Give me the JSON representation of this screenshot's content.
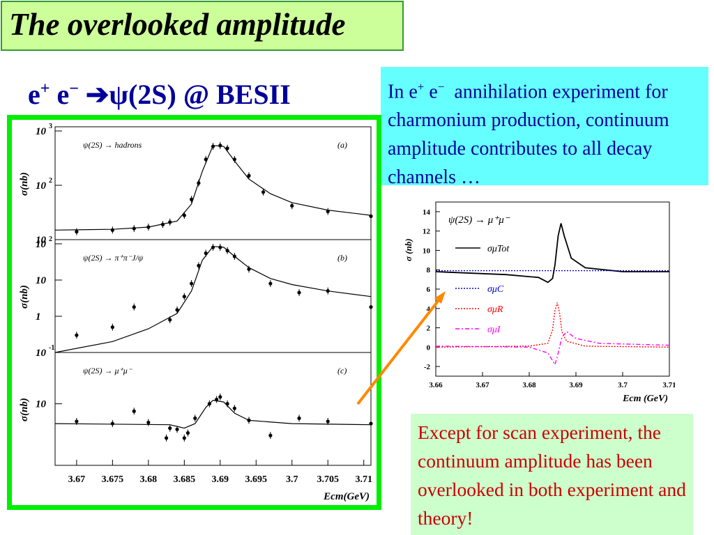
{
  "slide": {
    "title": "The overlooked amplitude",
    "subtitle": {
      "e1": "e",
      "e1_sup": "+",
      "e2": "e",
      "e2_sup": "−",
      "arrow": "➔",
      "rest": "ψ(2S) @ BESII"
    },
    "info_box": {
      "text_a": "In e",
      "sup_a": "+",
      "text_b": " e",
      "sup_b": "−",
      "text_c": "annihilation experiment for charmonium production, continuum amplitude contributes to all decay channels …"
    },
    "note_box": {
      "text": "Except for scan experiment, the continuum amplitude has been overlooked in both experiment and theory!"
    }
  },
  "chart_data": [
    {
      "type": "scatter",
      "panel": "(a)",
      "label": "ψ(2S) → hadrons",
      "ylabel": "σ(nb)",
      "yscale": "log",
      "ylim": [
        10,
        1000
      ],
      "yticks": [
        "10",
        "10²",
        "10³"
      ],
      "points": [
        [
          3.67,
          14
        ],
        [
          3.675,
          15
        ],
        [
          3.678,
          16
        ],
        [
          3.68,
          17
        ],
        [
          3.682,
          19
        ],
        [
          3.683,
          21
        ],
        [
          3.685,
          28
        ],
        [
          3.686,
          55
        ],
        [
          3.687,
          110
        ],
        [
          3.688,
          300
        ],
        [
          3.689,
          520
        ],
        [
          3.69,
          540
        ],
        [
          3.691,
          480
        ],
        [
          3.692,
          300
        ],
        [
          3.694,
          150
        ],
        [
          3.696,
          75
        ],
        [
          3.7,
          42
        ],
        [
          3.705,
          33
        ],
        [
          3.711,
          27
        ]
      ],
      "fit": [
        [
          3.667,
          15
        ],
        [
          3.675,
          15.5
        ],
        [
          3.68,
          17
        ],
        [
          3.684,
          22
        ],
        [
          3.686,
          45
        ],
        [
          3.6875,
          180
        ],
        [
          3.689,
          540
        ],
        [
          3.6905,
          520
        ],
        [
          3.692,
          280
        ],
        [
          3.694,
          130
        ],
        [
          3.697,
          70
        ],
        [
          3.7,
          48
        ],
        [
          3.705,
          35
        ],
        [
          3.711,
          28
        ]
      ]
    },
    {
      "type": "scatter",
      "panel": "(b)",
      "label": "ψ(2S) → π⁺π⁻J/ψ",
      "ylabel": "σ(nb)",
      "yscale": "log",
      "ylim": [
        0.1,
        100
      ],
      "yticks": [
        "10⁻¹",
        "1",
        "10",
        "10²"
      ],
      "points": [
        [
          3.67,
          0.3
        ],
        [
          3.675,
          0.5
        ],
        [
          3.678,
          1.8
        ],
        [
          3.683,
          0.8
        ],
        [
          3.684,
          1.5
        ],
        [
          3.685,
          3.5
        ],
        [
          3.686,
          8
        ],
        [
          3.687,
          25
        ],
        [
          3.688,
          55
        ],
        [
          3.689,
          80
        ],
        [
          3.69,
          80
        ],
        [
          3.691,
          65
        ],
        [
          3.692,
          45
        ],
        [
          3.694,
          20
        ],
        [
          3.697,
          8
        ],
        [
          3.701,
          4.5
        ],
        [
          3.705,
          5
        ],
        [
          3.711,
          1.8
        ]
      ],
      "fit": [
        [
          3.667,
          0.1
        ],
        [
          3.675,
          0.2
        ],
        [
          3.68,
          0.45
        ],
        [
          3.684,
          1.2
        ],
        [
          3.686,
          5
        ],
        [
          3.6875,
          35
        ],
        [
          3.689,
          85
        ],
        [
          3.6905,
          80
        ],
        [
          3.692,
          45
        ],
        [
          3.694,
          22
        ],
        [
          3.697,
          11
        ],
        [
          3.7,
          7.5
        ],
        [
          3.705,
          5
        ],
        [
          3.711,
          3.5
        ]
      ]
    },
    {
      "type": "scatter",
      "panel": "(c)",
      "label": "ψ(2S) → μ⁺μ⁻",
      "ylabel": "σ(nb)",
      "yscale": "log",
      "ylim": [
        5,
        17
      ],
      "yticks": [
        "10"
      ],
      "xlabel": "Ecm(GeV)",
      "xlim": [
        3.667,
        3.711
      ],
      "xticks": [
        "3.67",
        "3.675",
        "3.68",
        "3.685",
        "3.69",
        "3.695",
        "3.7",
        "3.705",
        "3.71"
      ],
      "points": [
        [
          3.67,
          8.2
        ],
        [
          3.675,
          8.0
        ],
        [
          3.678,
          9.2
        ],
        [
          3.68,
          8.1
        ],
        [
          3.6825,
          6.8
        ],
        [
          3.683,
          7.6
        ],
        [
          3.684,
          7.5
        ],
        [
          3.685,
          6.8
        ],
        [
          3.6855,
          7.2
        ],
        [
          3.6865,
          8.5
        ],
        [
          3.6885,
          10.0
        ],
        [
          3.6895,
          10.5
        ],
        [
          3.69,
          10.8
        ],
        [
          3.691,
          10.0
        ],
        [
          3.692,
          9.5
        ],
        [
          3.694,
          8.3
        ],
        [
          3.697,
          7.0
        ],
        [
          3.701,
          8.5
        ],
        [
          3.705,
          8.2
        ],
        [
          3.711,
          8.0
        ]
      ],
      "fit": [
        [
          3.667,
          8.0
        ],
        [
          3.683,
          7.9
        ],
        [
          3.685,
          7.6
        ],
        [
          3.6865,
          8.0
        ],
        [
          3.688,
          9.6
        ],
        [
          3.689,
          10.4
        ],
        [
          3.6905,
          10.2
        ],
        [
          3.692,
          9.0
        ],
        [
          3.694,
          8.3
        ],
        [
          3.7,
          8.0
        ],
        [
          3.711,
          7.9
        ]
      ]
    },
    {
      "type": "line",
      "label": "ψ(2S) → μ⁺μ⁻",
      "ylabel": "σ (nb)",
      "xlabel": "Ecm (GeV)",
      "xlim": [
        3.66,
        3.71
      ],
      "ylim": [
        -3,
        15
      ],
      "xticks": [
        "3.66",
        "3.67",
        "3.68",
        "3.69",
        "3.7",
        "3.71"
      ],
      "yticks": [
        "-2",
        "0",
        "2",
        "4",
        "6",
        "8",
        "10",
        "12",
        "14"
      ],
      "series": [
        {
          "name": "σμTot",
          "color": "#000000",
          "style": "solid",
          "values": [
            [
              3.66,
              7.8
            ],
            [
              3.675,
              7.5
            ],
            [
              3.682,
              7.2
            ],
            [
              3.684,
              6.7
            ],
            [
              3.685,
              7.1
            ],
            [
              3.6855,
              8.5
            ],
            [
              3.6862,
              11.5
            ],
            [
              3.6868,
              12.8
            ],
            [
              3.6875,
              11.5
            ],
            [
              3.689,
              9.2
            ],
            [
              3.692,
              8.2
            ],
            [
              3.7,
              7.8
            ],
            [
              3.71,
              7.8
            ]
          ]
        },
        {
          "name": "σμC",
          "color": "#0000cc",
          "style": "dotted",
          "values": [
            [
              3.66,
              7.9
            ],
            [
              3.71,
              7.9
            ]
          ]
        },
        {
          "name": "σμR",
          "color": "#ff0000",
          "style": "dotted",
          "values": [
            [
              3.66,
              0
            ],
            [
              3.68,
              0.1
            ],
            [
              3.684,
              0.4
            ],
            [
              3.685,
              1.8
            ],
            [
              3.6855,
              3.8
            ],
            [
              3.686,
              4.6
            ],
            [
              3.6865,
              3.5
            ],
            [
              3.687,
              1.6
            ],
            [
              3.688,
              0.6
            ],
            [
              3.692,
              0.1
            ],
            [
              3.71,
              0
            ]
          ]
        },
        {
          "name": "σμI",
          "color": "#ff00ff",
          "style": "dash-dot",
          "values": [
            [
              3.66,
              0.1
            ],
            [
              3.68,
              0
            ],
            [
              3.684,
              -0.6
            ],
            [
              3.6855,
              -1.8
            ],
            [
              3.686,
              -1.0
            ],
            [
              3.687,
              1.0
            ],
            [
              3.688,
              1.6
            ],
            [
              3.69,
              0.9
            ],
            [
              3.695,
              0.4
            ],
            [
              3.71,
              0.2
            ]
          ]
        }
      ]
    }
  ]
}
